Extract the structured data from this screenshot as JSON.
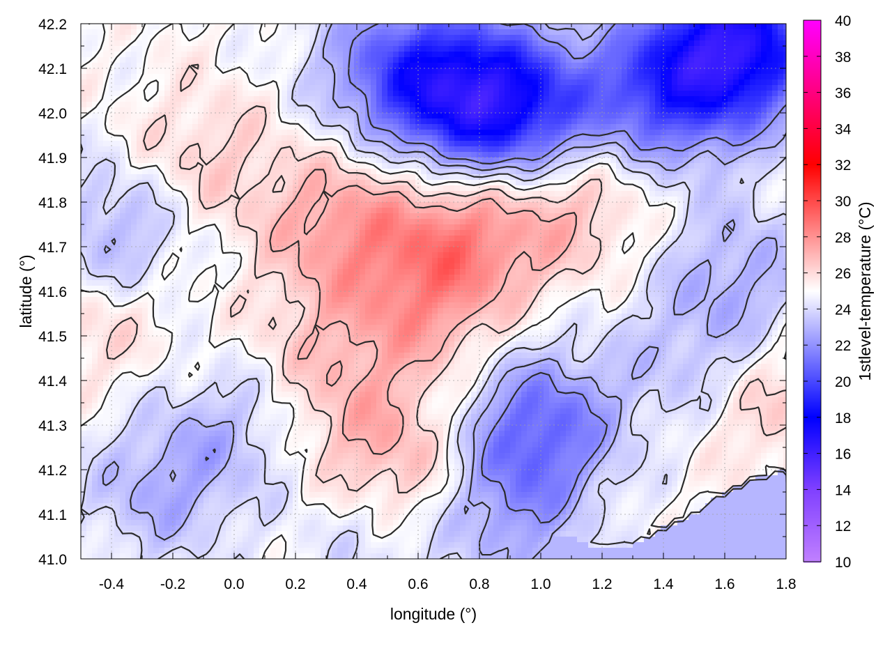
{
  "chart_data": {
    "type": "heatmap",
    "xlabel": "longitude (°)",
    "ylabel": "latitude (°)",
    "xlim": [
      -0.5,
      1.8
    ],
    "ylim": [
      41.0,
      42.2
    ],
    "x_ticks": [
      -0.4,
      -0.2,
      0.0,
      0.2,
      0.4,
      0.6,
      0.8,
      1.0,
      1.2,
      1.4,
      1.6,
      1.8
    ],
    "x_tick_labels": [
      "-0.4",
      "-0.2",
      "0.0",
      "0.2",
      "0.4",
      "0.6",
      "0.8",
      "1.0",
      "1.2",
      "1.4",
      "1.6",
      "1.8"
    ],
    "y_ticks": [
      41.0,
      41.1,
      41.2,
      41.3,
      41.4,
      41.5,
      41.6,
      41.7,
      41.8,
      41.9,
      42.0,
      42.1,
      42.2
    ],
    "y_tick_labels": [
      "41.0",
      "41.1",
      "41.2",
      "41.3",
      "41.4",
      "41.5",
      "41.6",
      "41.7",
      "41.8",
      "41.9",
      "42.0",
      "42.1",
      "42.2"
    ],
    "grid": true,
    "colorbar": {
      "label": "1stlevel-temperature (°C)",
      "range": [
        10,
        40
      ],
      "ticks": [
        10,
        12,
        14,
        16,
        18,
        20,
        22,
        24,
        26,
        28,
        30,
        32,
        34,
        36,
        38,
        40
      ],
      "tick_labels": [
        "10",
        "12",
        "14",
        "16",
        "18",
        "20",
        "22",
        "24",
        "26",
        "28",
        "30",
        "32",
        "34",
        "36",
        "38",
        "40"
      ],
      "stops": [
        {
          "value": 10,
          "color": "#c080ff"
        },
        {
          "value": 14,
          "color": "#8040ff"
        },
        {
          "value": 18,
          "color": "#0000ff"
        },
        {
          "value": 25,
          "color": "#ffffff"
        },
        {
          "value": 32,
          "color": "#ff0000"
        },
        {
          "value": 40,
          "color": "#ff00ff"
        }
      ]
    },
    "temperature_field": {
      "description_note": "approximate field: warm (~27-28 °C) inland core around lon 0.4-1.2, lat 41.5-41.9; cool (~17-21 °C) northeast corner; sea (~23 °C) bottom-right",
      "base_value": 25.0,
      "features": [
        {
          "lon": 0.75,
          "lat": 41.72,
          "value": 28.0
        },
        {
          "lon": 0.35,
          "lat": 41.75,
          "value": 27.5
        },
        {
          "lon": 1.1,
          "lat": 41.82,
          "value": 27.2
        },
        {
          "lon": 0.6,
          "lat": 41.55,
          "value": 27.0
        },
        {
          "lon": -0.1,
          "lat": 41.9,
          "value": 26.3
        },
        {
          "lon": -0.45,
          "lat": 41.55,
          "value": 26.5
        },
        {
          "lon": 0.25,
          "lat": 41.45,
          "value": 26.2
        },
        {
          "lon": 0.62,
          "lat": 41.12,
          "value": 27.8
        },
        {
          "lon": 0.45,
          "lat": 41.25,
          "value": 27.0
        },
        {
          "lon": 1.75,
          "lat": 41.35,
          "value": 26.6
        },
        {
          "lon": 1.65,
          "lat": 42.15,
          "value": 17.5
        },
        {
          "lon": 1.4,
          "lat": 42.05,
          "value": 20.5
        },
        {
          "lon": 0.95,
          "lat": 42.0,
          "value": 20.0
        },
        {
          "lon": 0.73,
          "lat": 42.05,
          "value": 19.5
        },
        {
          "lon": 0.5,
          "lat": 42.1,
          "value": 22.0
        },
        {
          "lon": 1.0,
          "lat": 41.3,
          "value": 21.0
        },
        {
          "lon": 0.85,
          "lat": 41.1,
          "value": 22.0
        },
        {
          "lon": -0.4,
          "lat": 41.72,
          "value": 22.5
        },
        {
          "lon": -0.25,
          "lat": 41.15,
          "value": 23.0
        },
        {
          "lon": 0.0,
          "lat": 41.3,
          "value": 23.3
        },
        {
          "lon": 1.65,
          "lat": 41.65,
          "value": 23.0
        },
        {
          "lon": 1.5,
          "lat": 41.45,
          "value": 23.3
        },
        {
          "lon": 0.5,
          "lat": 41.08,
          "value": 22.5
        }
      ],
      "sea_value": 23.0,
      "coastline": [
        [
          1.8,
          41.2
        ],
        [
          1.7,
          41.18
        ],
        [
          1.6,
          41.15
        ],
        [
          1.5,
          41.1
        ],
        [
          1.4,
          41.07
        ],
        [
          1.3,
          41.03
        ],
        [
          1.2,
          41.02
        ],
        [
          1.1,
          41.05
        ],
        [
          1.02,
          41.05
        ],
        [
          0.96,
          41.0
        ]
      ]
    },
    "contour_levels": [
      22,
      23,
      24,
      25,
      26,
      27
    ]
  }
}
